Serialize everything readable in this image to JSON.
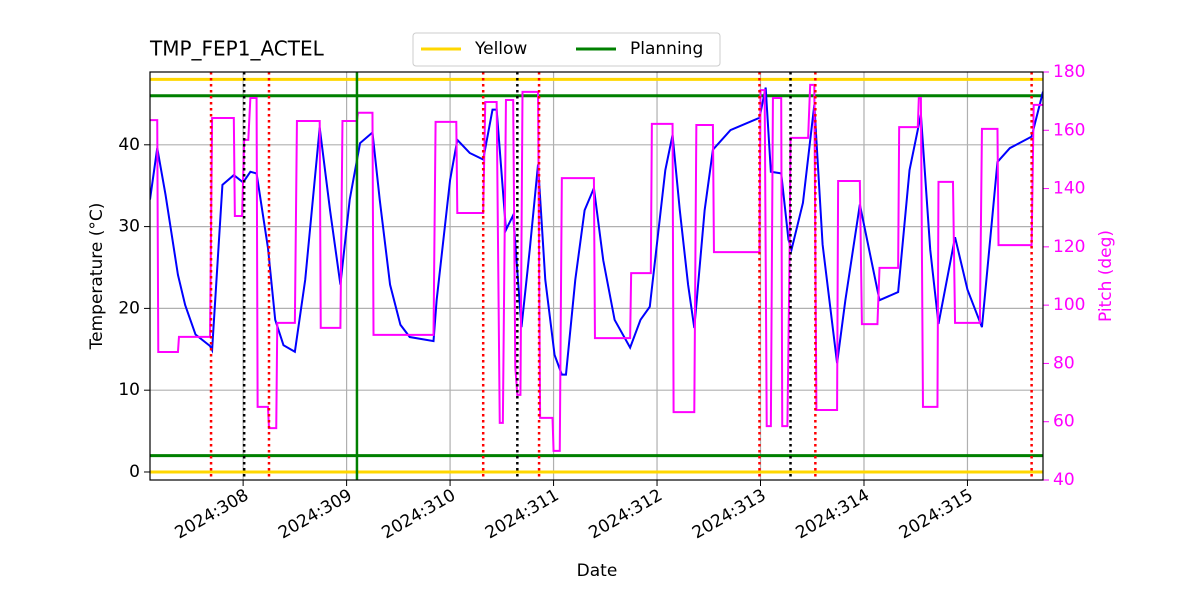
{
  "chart_data": {
    "type": "line",
    "title": "TMP_FEP1_ACTEL",
    "xlabel": "Date",
    "ylabel": "Temperature (°C)",
    "y2label": "Pitch (deg)",
    "xlim": [
      307.1,
      315.73
    ],
    "xticks": [
      {
        "value": 308,
        "label": "2024:308"
      },
      {
        "value": 309,
        "label": "2024:309"
      },
      {
        "value": 310,
        "label": "2024:310"
      },
      {
        "value": 311,
        "label": "2024:311"
      },
      {
        "value": 312,
        "label": "2024:312"
      },
      {
        "value": 313,
        "label": "2024:313"
      },
      {
        "value": 314,
        "label": "2024:314"
      },
      {
        "value": 315,
        "label": "2024:315"
      }
    ],
    "ylim": [
      -0.98,
      48.9
    ],
    "yticks": [
      0,
      10,
      20,
      30,
      40
    ],
    "y2lim": [
      40,
      180
    ],
    "y2ticks": [
      40,
      60,
      80,
      100,
      120,
      140,
      160,
      180
    ],
    "y2color": "magenta",
    "grid": true,
    "legend": "upper center",
    "series": [
      {
        "color": "blue",
        "x": [
          307.1,
          307.17,
          307.25,
          307.37,
          307.44,
          307.54,
          307.68,
          307.7,
          307.8,
          307.91,
          308.0,
          308.07,
          308.13,
          308.24,
          308.31,
          308.39,
          308.5,
          308.6,
          308.74,
          308.84,
          308.94,
          309.03,
          309.13,
          309.25,
          309.32,
          309.42,
          309.52,
          309.61,
          309.84,
          309.87,
          310.0,
          310.07,
          310.19,
          310.32,
          310.41,
          310.45,
          310.54,
          310.61,
          310.69,
          310.77,
          310.85,
          310.92,
          311.01,
          311.08,
          311.12,
          311.21,
          311.3,
          311.39,
          311.48,
          311.59,
          311.74,
          311.84,
          311.93,
          312.08,
          312.15,
          312.22,
          312.3,
          312.36,
          312.46,
          312.54,
          312.71,
          312.99,
          313.05,
          313.1,
          313.2,
          313.27,
          313.3,
          313.41,
          313.52,
          313.6,
          313.74,
          313.82,
          313.96,
          314.15,
          314.33,
          314.44,
          314.55,
          314.64,
          314.72,
          314.88,
          315.0,
          315.14,
          315.29,
          315.41,
          315.62,
          315.73
        ],
        "values": [
          33.3,
          39.6,
          33.9,
          24.1,
          20.4,
          16.8,
          15.4,
          14.9,
          35.1,
          36.3,
          35.4,
          36.7,
          36.5,
          27.4,
          18.6,
          15.5,
          14.7,
          23.5,
          42.1,
          32.0,
          22.9,
          33.3,
          40.2,
          41.5,
          33.3,
          22.9,
          18.0,
          16.5,
          16.0,
          21.0,
          35.7,
          40.6,
          39.0,
          38.2,
          44.3,
          44.3,
          29.6,
          31.4,
          17.7,
          27.2,
          37.6,
          23.5,
          14.3,
          11.9,
          11.9,
          23.5,
          32.0,
          34.7,
          25.9,
          18.6,
          15.2,
          18.6,
          20.2,
          36.9,
          41.2,
          32.0,
          22.9,
          17.6,
          32.0,
          39.4,
          41.8,
          43.3,
          47.0,
          36.7,
          36.5,
          28.4,
          27.2,
          32.9,
          44.9,
          27.8,
          13.3,
          21.0,
          32.7,
          21.0,
          22.0,
          36.9,
          43.7,
          27.2,
          18.1,
          28.7,
          22.3,
          17.7,
          37.9,
          39.6,
          41.0,
          46.5
        ]
      },
      {
        "color": "magenta",
        "axis": "y2",
        "x": [
          307.1,
          307.17,
          307.18,
          307.37,
          307.38,
          307.68,
          307.7,
          307.91,
          307.92,
          307.99,
          308.01,
          308.05,
          308.07,
          308.13,
          308.14,
          308.24,
          308.25,
          308.32,
          308.33,
          308.5,
          308.52,
          308.74,
          308.75,
          308.94,
          308.96,
          309.1,
          309.11,
          309.25,
          309.26,
          309.84,
          309.86,
          310.06,
          310.07,
          310.32,
          310.34,
          310.45,
          310.48,
          310.51,
          310.54,
          310.61,
          310.63,
          310.65,
          310.68,
          310.7,
          310.85,
          310.87,
          310.99,
          311.0,
          311.06,
          311.08,
          311.39,
          311.4,
          311.74,
          311.75,
          311.94,
          311.95,
          312.15,
          312.16,
          312.36,
          312.38,
          312.54,
          312.55,
          312.99,
          313.0,
          313.04,
          313.06,
          313.1,
          313.12,
          313.2,
          313.21,
          313.26,
          313.28,
          313.29,
          313.46,
          313.48,
          313.52,
          313.54,
          313.74,
          313.75,
          313.96,
          313.98,
          314.13,
          314.15,
          314.33,
          314.34,
          314.52,
          314.53,
          314.55,
          314.57,
          314.71,
          314.72,
          314.86,
          314.88,
          315.12,
          315.14,
          315.29,
          315.3,
          315.62,
          315.64,
          315.73
        ],
        "values": [
          163.5,
          163.5,
          83.9,
          83.9,
          89.1,
          89.1,
          164.2,
          164.2,
          130.6,
          130.6,
          156.7,
          156.7,
          171.1,
          171.1,
          65.1,
          65.1,
          57.8,
          57.8,
          93.9,
          93.9,
          163.2,
          163.2,
          92.2,
          92.2,
          163.2,
          163.2,
          166.0,
          166.0,
          89.8,
          89.8,
          162.9,
          162.9,
          131.6,
          131.6,
          169.7,
          169.7,
          59.6,
          59.6,
          170.4,
          170.4,
          78.8,
          69.2,
          69.2,
          173.2,
          173.2,
          61.3,
          61.3,
          50.0,
          50.0,
          143.6,
          143.6,
          88.7,
          88.7,
          111.0,
          111.0,
          162.2,
          162.2,
          63.3,
          63.3,
          161.8,
          161.8,
          118.2,
          118.2,
          173.8,
          173.8,
          58.5,
          58.5,
          171.1,
          171.1,
          58.5,
          58.5,
          114.8,
          157.4,
          157.4,
          175.6,
          175.6,
          64.0,
          64.0,
          142.6,
          142.6,
          93.5,
          93.5,
          112.8,
          112.8,
          161.1,
          161.1,
          171.1,
          171.1,
          65.1,
          65.1,
          142.3,
          142.3,
          93.9,
          93.9,
          160.5,
          160.5,
          120.6,
          120.6,
          168.7,
          168.7
        ]
      }
    ],
    "limits": [
      {
        "name": "Yellow",
        "color": "#ffd700",
        "values": [
          0,
          48
        ]
      },
      {
        "name": "Planning",
        "color": "green",
        "values": [
          2,
          46
        ]
      }
    ],
    "vlines": [
      {
        "color": "red",
        "style": "dotted",
        "x": [
          307.69,
          308.25,
          310.32,
          310.86,
          312.99,
          313.53,
          315.62
        ]
      },
      {
        "color": "black",
        "style": "dotted",
        "x": [
          308.01,
          310.65,
          313.29
        ]
      },
      {
        "color": "green",
        "style": "solid",
        "x": [
          309.1
        ]
      }
    ]
  }
}
